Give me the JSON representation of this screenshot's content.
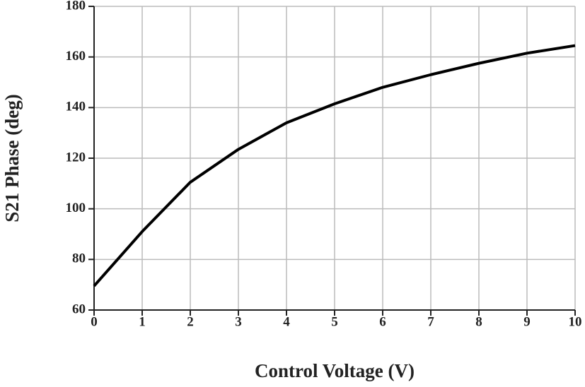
{
  "chart_data": {
    "type": "line",
    "x_label": "Control Voltage (V)",
    "y_label": "S21 Phase (deg)",
    "x": [
      0,
      1,
      2,
      3,
      4,
      5,
      6,
      7,
      8,
      9,
      10
    ],
    "values": [
      69.5,
      91,
      110.5,
      123.5,
      134,
      141.5,
      148,
      153,
      157.5,
      161.5,
      164.5
    ],
    "color": "#000000",
    "xlim": [
      0,
      10
    ],
    "xticks": [
      0,
      1,
      2,
      3,
      4,
      5,
      6,
      7,
      8,
      9,
      10
    ],
    "ylim": [
      60,
      180
    ],
    "yticks": [
      60,
      80,
      100,
      120,
      140,
      160,
      180
    ],
    "grid": true
  }
}
